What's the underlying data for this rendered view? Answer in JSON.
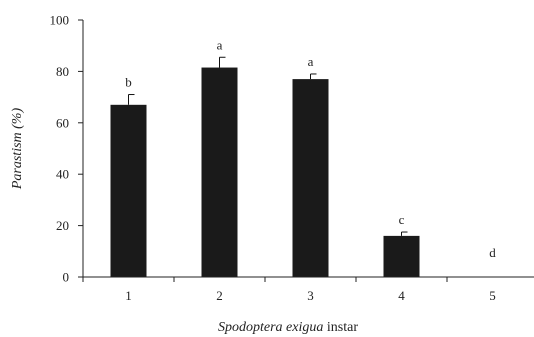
{
  "chart_data": {
    "type": "bar",
    "categories": [
      "1",
      "2",
      "3",
      "4",
      "5"
    ],
    "values": [
      67,
      81.5,
      77,
      16,
      0
    ],
    "errors": [
      4,
      4,
      2,
      1.5,
      0
    ],
    "significance_letters": [
      "b",
      "a",
      "a",
      "c",
      "d"
    ],
    "xlabel": {
      "italic": "Spodoptera exigua",
      "rest": " instar"
    },
    "ylabel": "Parastism (%)",
    "ylim": [
      0,
      100
    ],
    "yticks": [
      "0",
      "20",
      "40",
      "60",
      "80",
      "100"
    ],
    "grid": false,
    "bar_color": "#1a1a1a"
  }
}
